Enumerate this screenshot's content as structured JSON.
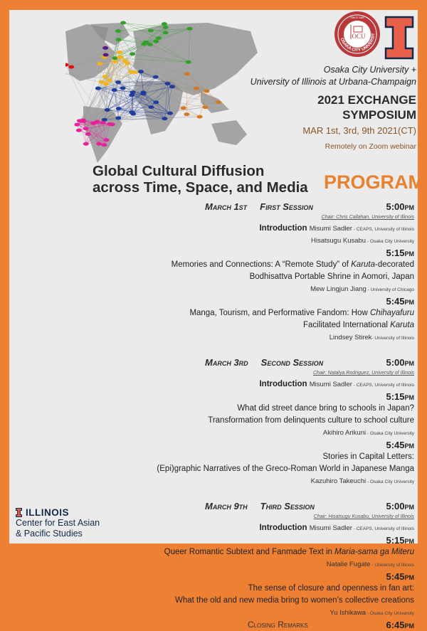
{
  "colors": {
    "border": "#ed8033",
    "background": "#ebebeb",
    "accent": "#e8822f",
    "brown": "#8a5428",
    "navy": "#13294b",
    "seal": "#b8393b",
    "illinois_orange": "#e8604a"
  },
  "map": {
    "clusters": [
      {
        "color": "#33a02c"
      },
      {
        "color": "#f0b41e"
      },
      {
        "color": "#1f3d99"
      },
      {
        "color": "#e8209a"
      },
      {
        "color": "#d07a25"
      },
      {
        "color": "#e01010"
      },
      {
        "color": "#5b1a8c"
      }
    ]
  },
  "logos": {
    "seal_text": "OSAKA CITY UNIVERSITY",
    "seal_since": "SINCE 1880",
    "seal_mark": "OCU"
  },
  "header": {
    "partners_line1": "Osaka City University +",
    "partners_line2": "University of Illinois at Urbana-Champaign",
    "event_line1": "2021 EXCHANGE",
    "event_line2": "SYMPOSIUM",
    "dates": "MAR 1st, 3rd, 9th 2021(CT)",
    "venue": "Remotely on Zoom webinar"
  },
  "title": {
    "line1": "Global Cultural Diffusion",
    "line2": "across Time, Space, and Media"
  },
  "program_label": "PROGRAM",
  "sessions": [
    {
      "date": "March 1st",
      "name": "First Session",
      "time": "5:00pm",
      "chair": "Chair: Chris Callahan, University of Illinois",
      "intro_label": "Introduction",
      "intro": [
        {
          "name": "Misumi Sadler",
          "aff": " - CEAPS, University of Illinois"
        },
        {
          "name": "Hisatsugu Kusabu",
          "aff": "  -  Osaka City University"
        }
      ],
      "talks": [
        {
          "time": "5:15pm",
          "lines": [
            [
              "Memories and Connections: A “Remote Study” of ",
              "Karuta",
              "-decorated"
            ],
            [
              "Bodhisattva Portable Shrine in Aomori, Japan",
              "",
              ""
            ]
          ],
          "name": "Mew Lingjun Jiang",
          "aff": " - University of Chicago"
        },
        {
          "time": "5:45pm",
          "lines": [
            [
              "Manga, Tourism, and Performative Fandom: How ",
              "Chihayafuru",
              ""
            ],
            [
              "Facilitated International ",
              "Karuta",
              ""
            ]
          ],
          "name": "Lindsey Stirek",
          "aff": "- University of Illinois"
        }
      ]
    },
    {
      "date": "March 3rd",
      "name": "Second Session",
      "time": "5:00pm",
      "chair": "Chair: Natalya Rodriguez, University of Illinois",
      "intro_label": "Introduction",
      "intro": [
        {
          "name": "Misumi Sadler",
          "aff": " - CEAPS, University of Illinois"
        }
      ],
      "talks": [
        {
          "time": "5:15pm",
          "lines": [
            [
              "What did street dance bring to schools in Japan?",
              "",
              ""
            ],
            [
              "Transformation from delinquents culture to school culture",
              "",
              ""
            ]
          ],
          "name": "Akihiro Arikuni",
          "aff": " - Osaka City University"
        },
        {
          "time": "5:45pm",
          "lines": [
            [
              "Stories in Capital Letters:",
              "",
              ""
            ],
            [
              "(Epi)graphic Narratives of the Greco-Roman World in Japanese Manga",
              "",
              ""
            ]
          ],
          "name": "Kazuhiro Takeuchi",
          "aff": " - Osaka City University"
        }
      ]
    },
    {
      "date": "March 9th",
      "name": "Third Session",
      "time": "5:00pm",
      "chair": "Chair: Hisatsugu Kusabu, University of Illinois",
      "intro_label": "Introduction",
      "intro": [
        {
          "name": "Misumi Sadler",
          "aff": " - CEAPS, University of Illinois"
        }
      ],
      "talks": [
        {
          "time": "5:15pm",
          "lines": [
            [
              "Queer Romantic Subtext and Fanmade Text in ",
              "Maria-sama ga Miteru",
              ""
            ]
          ],
          "name": "Natalie Fugate",
          "aff": " - University of Illinois"
        },
        {
          "time": "5:45pm",
          "lines": [
            [
              "The sense of closure and openness in fan art:",
              "",
              ""
            ],
            [
              "What the old and new media bring to women’s collective creations",
              "",
              ""
            ]
          ],
          "name": "Yu Ishikawa",
          "aff": " - Osaka City University"
        }
      ]
    }
  ],
  "closing": {
    "label": "Closing Remarks",
    "time": "6:45pm"
  },
  "center": {
    "brand": "ILLINOIS",
    "line1": "Center for East Asian",
    "line2": "& Pacific Studies"
  }
}
